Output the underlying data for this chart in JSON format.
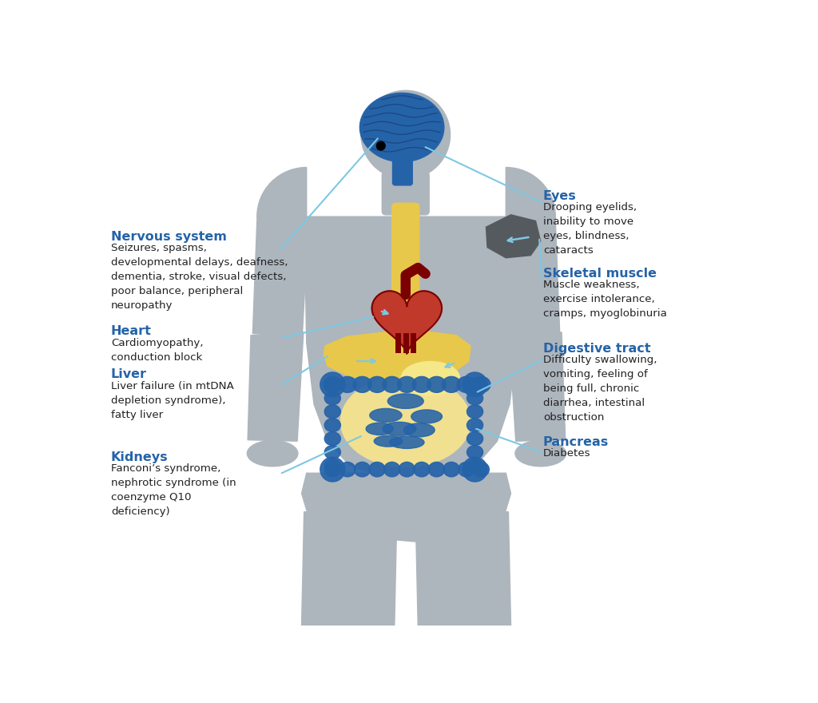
{
  "bg": "#ffffff",
  "body_color": "#adb5bd",
  "brain_color": "#2563a8",
  "heart_color": "#c0392b",
  "liver_color": "#e8c84a",
  "intestine_color": "#2563a8",
  "muscle_color": "#555a5f",
  "esophagus_color": "#e8c84a",
  "line_color": "#7ec8e3",
  "label_color": "#2563a8",
  "text_color": "#222222",
  "nervous_system_title": "Nervous system",
  "nervous_system_text": "Seizures, spasms,\ndevelopmental delays, deafness,\ndementia, stroke, visual defects,\npoor balance, peripheral\nneuropathy",
  "eyes_title": "Eyes",
  "eyes_text": "Drooping eyelids,\ninability to move\neyes, blindness,\ncataracts",
  "heart_title": "Heart",
  "heart_text": "Cardiomyopathy,\nconduction block",
  "skeletal_title": "Skeletal muscle",
  "skeletal_text": "Muscle weakness,\nexercise intolerance,\ncramps, myoglobinuria",
  "liver_title": "Liver",
  "liver_text": "Liver failure (in mtDNA\ndepletion syndrome),\nfatty liver",
  "digestive_title": "Digestive tract",
  "digestive_text": "Difficulty swallowing,\nvomiting, feeling of\nbeing full, chronic\ndiarrhea, intestinal\nobstruction",
  "kidneys_title": "Kidneys",
  "kidneys_text": "Fanconi’s syndrome,\nnephrotic syndrome (in\ncoenzyme Q10\ndeficiency)",
  "pancreas_title": "Pancreas",
  "pancreas_text": "Diabetes"
}
